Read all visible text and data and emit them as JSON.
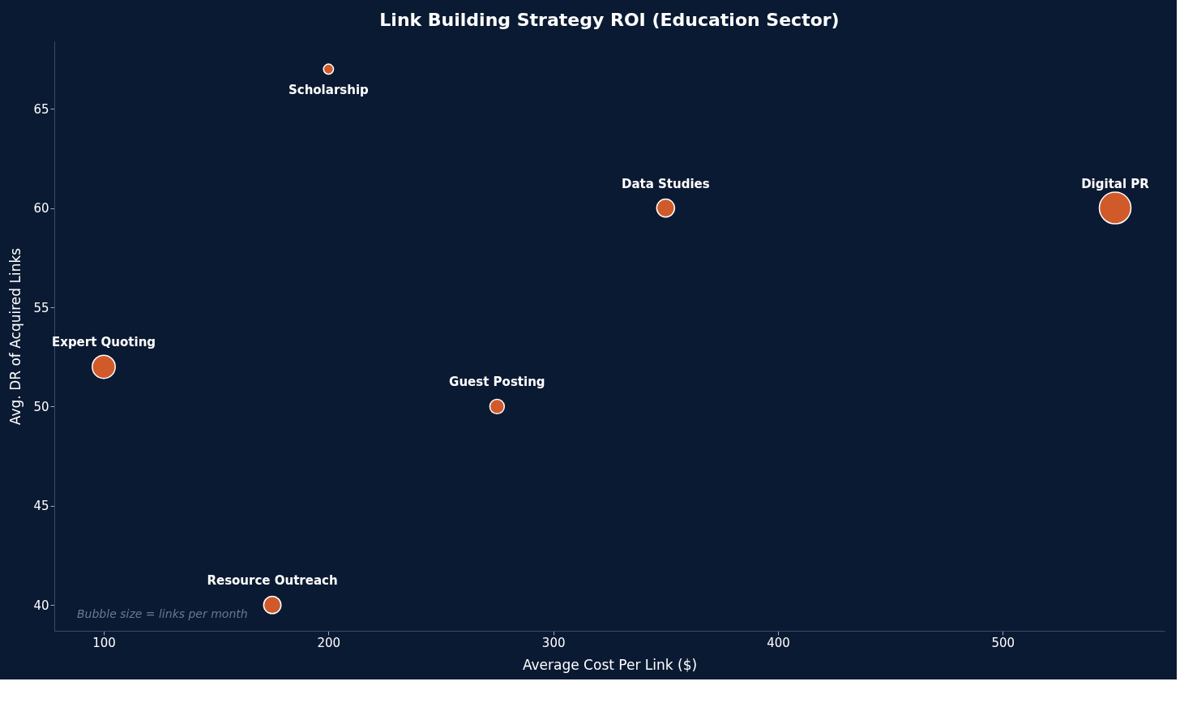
{
  "chart_data": {
    "type": "bubble",
    "title": "Link Building Strategy ROI (Education Sector)",
    "xlabel": "Average Cost Per Link ($)",
    "ylabel": "Avg. DR of Acquired Links",
    "x": [
      200,
      350,
      550,
      100,
      275,
      175
    ],
    "series": [
      {
        "color": "#d05a2a",
        "values": [
          67,
          60,
          60,
          52,
          50,
          40
        ],
        "sizes": [
          0.1,
          0.32,
          1,
          0.53,
          0.21,
          0.3
        ],
        "value_labels": [
          "Scholarship",
          "Data Studies",
          "Digital PR",
          "Expert Quoting",
          "Guest Posting",
          "Resource Outreach"
        ]
      }
    ],
    "xlim": [
      78,
      572
    ],
    "ylim": [
      38.7,
      68.4
    ],
    "xticks": [
      100,
      200,
      300,
      400,
      500
    ],
    "yticks": [
      40,
      45,
      50,
      55,
      60,
      65
    ],
    "grid": false,
    "legend": false,
    "annotations": [
      "Bubble size = links per month"
    ]
  }
}
